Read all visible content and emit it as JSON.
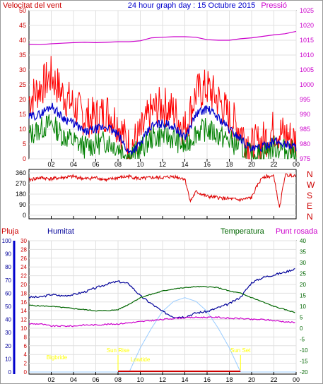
{
  "title": "24 hour graph day : 15 Octubre 2015",
  "colors": {
    "wind": "#ff0000",
    "gust": "#ff0000",
    "avg": "#0000cc",
    "green": "#008000",
    "pressure": "#cc00cc",
    "direction": "#dd0000",
    "rain": "#cc0000",
    "humidity": "#000099",
    "temperature": "#006600",
    "dew": "#cc00cc",
    "sun": "#99ccff",
    "sunlabel": "#ffff00",
    "axisblue": "#0000cc"
  },
  "x_ticks": [
    "02",
    "04",
    "06",
    "08",
    "10",
    "12",
    "14",
    "16",
    "18",
    "20",
    "22",
    "00"
  ],
  "chart_data": [
    {
      "type": "line",
      "title": "24 hour graph day : 15 Octubre 2015",
      "left_label": "Velocitat del vent",
      "right_label": "Pressió",
      "left_ticks": [
        "0",
        "5",
        "10",
        "15",
        "20",
        "25",
        "30",
        "35",
        "40",
        "45",
        "50"
      ],
      "right_ticks": [
        "975",
        "980",
        "985",
        "990",
        "995",
        "1000",
        "1005",
        "1010",
        "1015",
        "1020",
        "1025"
      ],
      "ylim_left": [
        0,
        50
      ],
      "ylim_right": [
        975,
        1025
      ],
      "x": [
        0,
        1,
        2,
        3,
        4,
        5,
        6,
        7,
        8,
        9,
        10,
        11,
        12,
        13,
        14,
        15,
        16,
        17,
        18,
        19,
        20,
        21,
        22,
        23,
        24
      ],
      "series": [
        {
          "key": "gust",
          "values": [
            20,
            24,
            28,
            22,
            18,
            14,
            14,
            16,
            12,
            4,
            8,
            16,
            18,
            16,
            10,
            22,
            24,
            20,
            14,
            10,
            4,
            6,
            10,
            8,
            6
          ]
        },
        {
          "key": "avg",
          "values": [
            14,
            15,
            18,
            14,
            12,
            9,
            10,
            11,
            8,
            2,
            5,
            11,
            12,
            11,
            7,
            15,
            17,
            14,
            10,
            7,
            3,
            4,
            6,
            5,
            4
          ]
        },
        {
          "key": "green",
          "values": [
            8,
            10,
            12,
            8,
            6,
            4,
            5,
            6,
            4,
            1,
            3,
            7,
            8,
            7,
            4,
            9,
            10,
            8,
            6,
            4,
            1,
            2,
            4,
            3,
            2
          ]
        },
        {
          "key": "pressure",
          "values": [
            1013.6,
            1013.5,
            1013.8,
            1014,
            1014.2,
            1014.3,
            1014.2,
            1014.3,
            1014.5,
            1014.5,
            1014.8,
            1015.8,
            1016,
            1016.2,
            1016.2,
            1016,
            1015.2,
            1015,
            1015,
            1015.5,
            1015.8,
            1016.3,
            1016.8,
            1017.2,
            1018
          ]
        }
      ]
    },
    {
      "type": "line",
      "right_letters": [
        "N",
        "W",
        "S",
        "E",
        "N"
      ],
      "left_ticks": [
        "0",
        "90",
        "180",
        "270",
        "360"
      ],
      "ylim": [
        0,
        360
      ],
      "x": [
        0,
        1,
        2,
        3,
        4,
        5,
        6,
        7,
        8,
        9,
        10,
        11,
        12,
        13,
        14,
        14.5,
        15,
        16,
        17,
        18,
        19,
        20,
        20.5,
        21,
        22,
        22.5,
        23,
        24
      ],
      "series": [
        {
          "key": "direction",
          "values": [
            300,
            320,
            310,
            320,
            330,
            310,
            320,
            300,
            320,
            330,
            310,
            320,
            320,
            330,
            310,
            120,
            200,
            160,
            150,
            140,
            130,
            150,
            250,
            330,
            330,
            60,
            340,
            340
          ]
        }
      ]
    },
    {
      "type": "line",
      "labels": {
        "rain": "Pluja",
        "humidity": "Humitat",
        "temperature": "Temperatura",
        "dew": "Punt rosada"
      },
      "rain_ticks": [
        "0",
        "2",
        "4",
        "6",
        "8",
        "10",
        "12",
        "14",
        "16",
        "18",
        "20",
        "22",
        "24",
        "26",
        "28",
        "30"
      ],
      "hum_ticks": [
        "0",
        "10",
        "20",
        "30",
        "40",
        "50",
        "60",
        "70",
        "80",
        "90",
        "100"
      ],
      "temp_ticks": [
        "-20",
        "-15",
        "-10",
        "-5",
        "0",
        "5",
        "10",
        "15",
        "20",
        "25",
        "30",
        "35",
        "40"
      ],
      "ylim_humidity": [
        0,
        100
      ],
      "ylim_temperature": [
        -20,
        40
      ],
      "x": [
        0,
        1,
        2,
        3,
        4,
        5,
        6,
        7,
        8,
        9,
        10,
        11,
        12,
        13,
        14,
        15,
        16,
        17,
        18,
        19,
        20,
        21,
        22,
        23,
        24
      ],
      "series": [
        {
          "key": "humidity",
          "values": [
            57,
            57,
            59,
            58,
            59,
            61,
            64,
            67,
            69,
            67,
            58,
            52,
            46,
            42,
            42,
            45,
            46,
            49,
            52,
            57,
            68,
            72,
            74,
            76,
            79
          ]
        },
        {
          "key": "temperature",
          "values": [
            10.5,
            10.2,
            10,
            9.5,
            9,
            8.5,
            8,
            8,
            8.5,
            11,
            14,
            15.5,
            17,
            18,
            18.5,
            19,
            19,
            18.5,
            17,
            16,
            14,
            12,
            10,
            8.5,
            7
          ]
        },
        {
          "key": "dew",
          "values": [
            2,
            2,
            1,
            1,
            1,
            1.5,
            1.5,
            1.8,
            2,
            2.5,
            3,
            3.5,
            4,
            4.5,
            4.8,
            5,
            5,
            5,
            4.5,
            4.5,
            4,
            4,
            3.5,
            3,
            2.5
          ]
        },
        {
          "key": "sun",
          "values": [
            -20,
            -20,
            -20,
            -20,
            -20,
            -20,
            -20,
            -20,
            -20,
            -20,
            -9,
            0,
            7.7,
            12.3,
            14,
            12.3,
            7.7,
            0,
            -9,
            -20,
            -20,
            -20,
            -20,
            -20,
            -20
          ]
        }
      ],
      "annotations": [
        {
          "key": "sunrise",
          "text": "Sun Rise",
          "hour": 8
        },
        {
          "key": "sunset",
          "text": "Sun Set",
          "hour": 19
        },
        {
          "key": "bigbride",
          "text": "Bigbride",
          "hour": 2.5
        },
        {
          "key": "lowtide",
          "text": "Lowtide",
          "hour": 10
        }
      ]
    }
  ]
}
